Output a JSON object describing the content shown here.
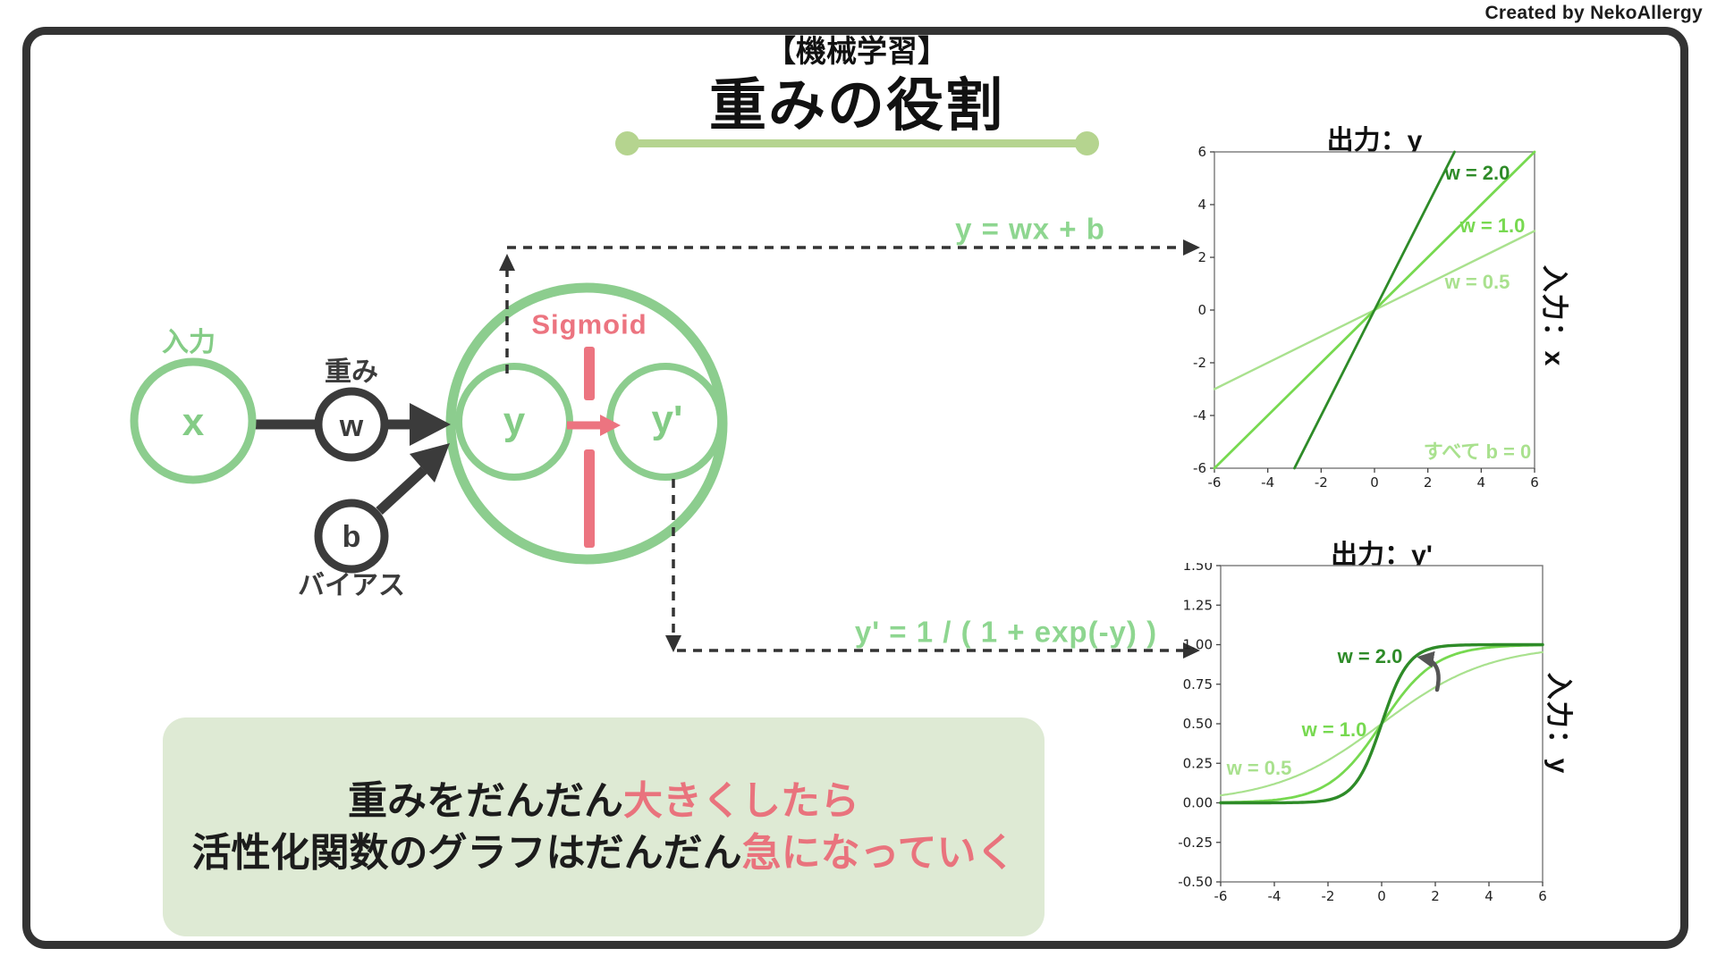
{
  "credit": "Created by NekoAllergy",
  "header": {
    "category": "【機械学習】",
    "title": "重みの役割"
  },
  "network": {
    "input_label": "入力",
    "input_node": "x",
    "weight_label": "重み",
    "weight_node": "w",
    "bias_node": "b",
    "bias_label": "バイアス",
    "activation_label": "Sigmoid",
    "pre_activation_node": "y",
    "post_activation_node": "y'"
  },
  "formulas": {
    "linear": "y = wx + b",
    "activation": "y' = 1 / ( 1 + exp(-y) )"
  },
  "note": {
    "line1_black": "重みをだんだん",
    "line1_red": "大きくしたら",
    "line2_black": "活性化関数のグラフはだんだん",
    "line2_red": "急になっていく"
  },
  "colors": {
    "diagram_green": "#8ccd8e",
    "underline_green": "#b5d48f",
    "note_box_green": "#deead4",
    "pink": "#ec7480",
    "note_red": "#e9737d",
    "dark_gray": "#3b3b3b",
    "line_dark_green": "#2e8b28",
    "line_mid_green": "#77d950",
    "line_pale_green": "#a9e18e"
  },
  "chart_data": [
    {
      "type": "line",
      "title": "出力：y",
      "right_axis_label": "入力：x",
      "formula": "y = wx + b",
      "annotation": "すべて b = 0",
      "xlim": [
        -6,
        6
      ],
      "ylim": [
        -6,
        6
      ],
      "xticks": [
        "-6",
        "-4",
        "-2",
        "0",
        "2",
        "4",
        "6"
      ],
      "yticks": [
        "-6",
        "-4",
        "-2",
        "0",
        "2",
        "4",
        "6"
      ],
      "grid": false,
      "series": [
        {
          "name": "w = 2.0",
          "w": 2.0,
          "color": "#2e8b28",
          "x": [
            -3,
            3
          ],
          "y": [
            -6,
            6
          ]
        },
        {
          "name": "w = 1.0",
          "w": 1.0,
          "color": "#77d950",
          "x": [
            -6,
            6
          ],
          "y": [
            -6,
            6
          ]
        },
        {
          "name": "w = 0.5",
          "w": 0.5,
          "color": "#a9e18e",
          "x": [
            -6,
            6
          ],
          "y": [
            -3,
            3
          ]
        }
      ]
    },
    {
      "type": "line",
      "title": "出力：y'",
      "right_axis_label": "入力：y",
      "formula": "y' = 1 / ( 1 + exp(-y) )",
      "function": "sigmoid",
      "xlim": [
        -6,
        6
      ],
      "ylim": [
        -0.5,
        1.5
      ],
      "xticks": [
        "-6",
        "-4",
        "-2",
        "0",
        "2",
        "4",
        "6"
      ],
      "yticks": [
        "1.50",
        "1.25",
        "1.00",
        "0.75",
        "0.50",
        "0.25",
        "0.00",
        "-0.25",
        "-0.50"
      ],
      "grid": false,
      "series": [
        {
          "name": "w = 2.0",
          "w": 2.0,
          "color": "#2e8b28"
        },
        {
          "name": "w = 1.0",
          "w": 1.0,
          "color": "#77d950"
        },
        {
          "name": "w = 0.5",
          "w": 0.5,
          "color": "#a9e18e"
        }
      ]
    }
  ]
}
